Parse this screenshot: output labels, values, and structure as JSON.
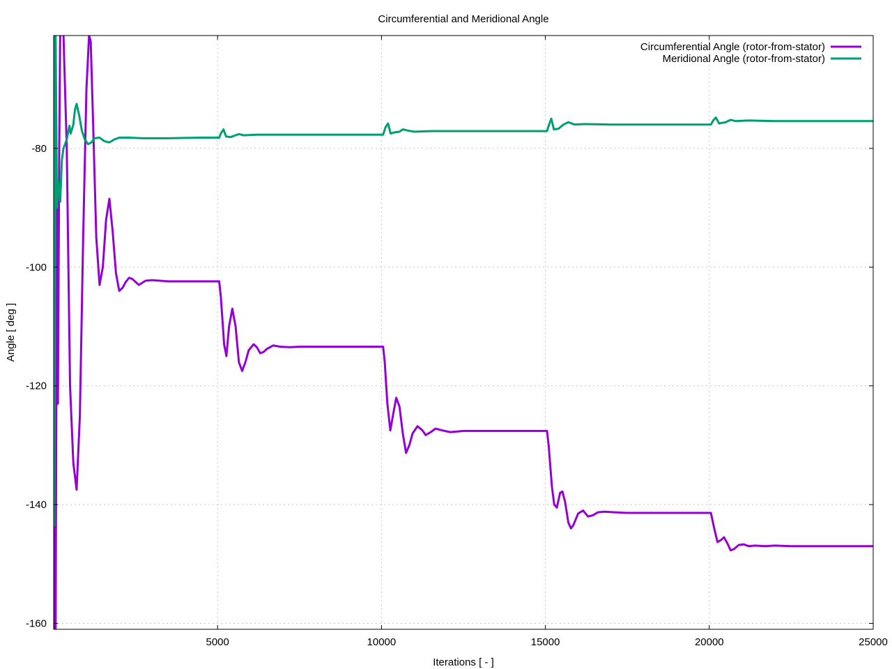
{
  "chart_data": {
    "type": "line",
    "title": "Circumferential and Meridional Angle",
    "xlabel": "Iterations [ - ]",
    "ylabel": "Angle [ deg ]",
    "xlim": [
      0,
      25000
    ],
    "ylim": [
      -161,
      -61
    ],
    "x_ticks": [
      5000,
      10000,
      15000,
      20000,
      25000
    ],
    "y_ticks": [
      -160,
      -140,
      -120,
      -100,
      -80
    ],
    "grid": true,
    "legend_position": "top-right",
    "series": [
      {
        "name": "Circumferential Angle (rotor-from-stator)",
        "color": "#9400d3",
        "points": [
          [
            0,
            -161
          ],
          [
            30,
            -80
          ],
          [
            60,
            -161
          ],
          [
            100,
            -90
          ],
          [
            130,
            -123
          ],
          [
            170,
            -80
          ],
          [
            200,
            -60
          ],
          [
            300,
            -61
          ],
          [
            400,
            -80
          ],
          [
            500,
            -120
          ],
          [
            600,
            -133
          ],
          [
            700,
            -137.5
          ],
          [
            800,
            -125
          ],
          [
            900,
            -95
          ],
          [
            1000,
            -70
          ],
          [
            1080,
            -61
          ],
          [
            1130,
            -62
          ],
          [
            1200,
            -75
          ],
          [
            1300,
            -95
          ],
          [
            1400,
            -103
          ],
          [
            1500,
            -100
          ],
          [
            1600,
            -92
          ],
          [
            1700,
            -88.5
          ],
          [
            1800,
            -94
          ],
          [
            1900,
            -101
          ],
          [
            2000,
            -104
          ],
          [
            2100,
            -103.5
          ],
          [
            2200,
            -102.5
          ],
          [
            2300,
            -101.8
          ],
          [
            2400,
            -102
          ],
          [
            2600,
            -103
          ],
          [
            2800,
            -102.3
          ],
          [
            3000,
            -102.2
          ],
          [
            3500,
            -102.4
          ],
          [
            4000,
            -102.4
          ],
          [
            4500,
            -102.4
          ],
          [
            5000,
            -102.4
          ],
          [
            5050,
            -102.4
          ],
          [
            5100,
            -105
          ],
          [
            5200,
            -113
          ],
          [
            5270,
            -115
          ],
          [
            5350,
            -110
          ],
          [
            5450,
            -107
          ],
          [
            5550,
            -110
          ],
          [
            5650,
            -116
          ],
          [
            5750,
            -117.5
          ],
          [
            5850,
            -116
          ],
          [
            5950,
            -114
          ],
          [
            6100,
            -113
          ],
          [
            6200,
            -113.5
          ],
          [
            6300,
            -114.5
          ],
          [
            6400,
            -114.3
          ],
          [
            6500,
            -113.8
          ],
          [
            6700,
            -113.2
          ],
          [
            6900,
            -113.4
          ],
          [
            7200,
            -113.5
          ],
          [
            7500,
            -113.4
          ],
          [
            8000,
            -113.4
          ],
          [
            9000,
            -113.4
          ],
          [
            10000,
            -113.4
          ],
          [
            10050,
            -113.4
          ],
          [
            10100,
            -116
          ],
          [
            10180,
            -123
          ],
          [
            10270,
            -127.5
          ],
          [
            10350,
            -125
          ],
          [
            10450,
            -122
          ],
          [
            10550,
            -123.5
          ],
          [
            10650,
            -128
          ],
          [
            10750,
            -131.3
          ],
          [
            10850,
            -130
          ],
          [
            10950,
            -128
          ],
          [
            11100,
            -126.8
          ],
          [
            11250,
            -127.5
          ],
          [
            11350,
            -128.3
          ],
          [
            11500,
            -127.8
          ],
          [
            11650,
            -127.2
          ],
          [
            11850,
            -127.5
          ],
          [
            12100,
            -127.8
          ],
          [
            12500,
            -127.6
          ],
          [
            13000,
            -127.6
          ],
          [
            14000,
            -127.6
          ],
          [
            15000,
            -127.6
          ],
          [
            15050,
            -127.6
          ],
          [
            15100,
            -130
          ],
          [
            15200,
            -137
          ],
          [
            15270,
            -140
          ],
          [
            15350,
            -140.5
          ],
          [
            15450,
            -138
          ],
          [
            15520,
            -137.8
          ],
          [
            15600,
            -139.5
          ],
          [
            15700,
            -143
          ],
          [
            15780,
            -144
          ],
          [
            15850,
            -143.5
          ],
          [
            16000,
            -141.5
          ],
          [
            16150,
            -141
          ],
          [
            16300,
            -142
          ],
          [
            16450,
            -141.8
          ],
          [
            16600,
            -141.3
          ],
          [
            16800,
            -141.2
          ],
          [
            17100,
            -141.3
          ],
          [
            17500,
            -141.4
          ],
          [
            18000,
            -141.4
          ],
          [
            19000,
            -141.4
          ],
          [
            20000,
            -141.4
          ],
          [
            20050,
            -141.4
          ],
          [
            20150,
            -144
          ],
          [
            20250,
            -146.3
          ],
          [
            20350,
            -146
          ],
          [
            20450,
            -145.5
          ],
          [
            20550,
            -146.5
          ],
          [
            20650,
            -147.7
          ],
          [
            20750,
            -147.5
          ],
          [
            20900,
            -146.8
          ],
          [
            21050,
            -146.7
          ],
          [
            21200,
            -147
          ],
          [
            21400,
            -146.9
          ],
          [
            21700,
            -147
          ],
          [
            22000,
            -146.9
          ],
          [
            22500,
            -147
          ],
          [
            23000,
            -147
          ],
          [
            24000,
            -147
          ],
          [
            25000,
            -147
          ]
        ]
      },
      {
        "name": "Meridional Angle (rotor-from-stator)",
        "color": "#009e73",
        "points": [
          [
            0,
            -61
          ],
          [
            20,
            -143.5
          ],
          [
            60,
            -61
          ],
          [
            100,
            -90
          ],
          [
            140,
            -85.5
          ],
          [
            200,
            -89
          ],
          [
            250,
            -82
          ],
          [
            300,
            -80
          ],
          [
            400,
            -78.5
          ],
          [
            480,
            -76.2
          ],
          [
            520,
            -77.5
          ],
          [
            600,
            -76
          ],
          [
            650,
            -73.5
          ],
          [
            700,
            -72.5
          ],
          [
            780,
            -74.5
          ],
          [
            860,
            -77
          ],
          [
            950,
            -78.5
          ],
          [
            1050,
            -79.3
          ],
          [
            1150,
            -79
          ],
          [
            1250,
            -78.3
          ],
          [
            1400,
            -78.2
          ],
          [
            1550,
            -78.8
          ],
          [
            1700,
            -79
          ],
          [
            1850,
            -78.5
          ],
          [
            2000,
            -78.2
          ],
          [
            2300,
            -78.2
          ],
          [
            2700,
            -78.3
          ],
          [
            3500,
            -78.3
          ],
          [
            4500,
            -78.2
          ],
          [
            5000,
            -78.2
          ],
          [
            5050,
            -78.2
          ],
          [
            5100,
            -77.5
          ],
          [
            5180,
            -76.8
          ],
          [
            5260,
            -78
          ],
          [
            5400,
            -78.1
          ],
          [
            5550,
            -77.8
          ],
          [
            5650,
            -77.6
          ],
          [
            5800,
            -77.8
          ],
          [
            6200,
            -77.7
          ],
          [
            7000,
            -77.7
          ],
          [
            8000,
            -77.7
          ],
          [
            9000,
            -77.7
          ],
          [
            10000,
            -77.7
          ],
          [
            10050,
            -77.7
          ],
          [
            10120,
            -76.5
          ],
          [
            10200,
            -75.8
          ],
          [
            10280,
            -77.5
          ],
          [
            10400,
            -77.3
          ],
          [
            10550,
            -77.2
          ],
          [
            10650,
            -76.8
          ],
          [
            10800,
            -77
          ],
          [
            11000,
            -77.2
          ],
          [
            11500,
            -77.1
          ],
          [
            12500,
            -77.1
          ],
          [
            14000,
            -77.1
          ],
          [
            15000,
            -77.1
          ],
          [
            15050,
            -77.1
          ],
          [
            15100,
            -76.2
          ],
          [
            15180,
            -75
          ],
          [
            15260,
            -76.8
          ],
          [
            15400,
            -76.7
          ],
          [
            15550,
            -76
          ],
          [
            15700,
            -75.6
          ],
          [
            15900,
            -76
          ],
          [
            16200,
            -75.9
          ],
          [
            17000,
            -76
          ],
          [
            18000,
            -76
          ],
          [
            19000,
            -76
          ],
          [
            20000,
            -76
          ],
          [
            20050,
            -76
          ],
          [
            20120,
            -75.3
          ],
          [
            20200,
            -74.8
          ],
          [
            20300,
            -75.8
          ],
          [
            20500,
            -75.6
          ],
          [
            20650,
            -75.2
          ],
          [
            20800,
            -75.4
          ],
          [
            21200,
            -75.3
          ],
          [
            22000,
            -75.4
          ],
          [
            23000,
            -75.4
          ],
          [
            24000,
            -75.4
          ],
          [
            25000,
            -75.4
          ]
        ]
      }
    ]
  }
}
